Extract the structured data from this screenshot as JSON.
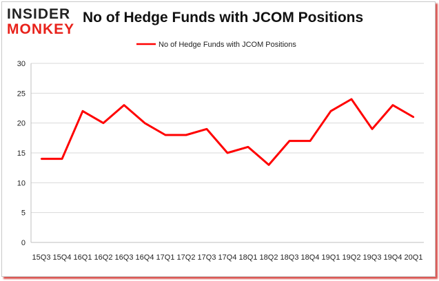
{
  "brand": {
    "line1": "INSIDER",
    "line2": "MONKEY"
  },
  "chart_data": {
    "type": "line",
    "title": "No of Hedge Funds with JCOM Positions",
    "categories": [
      "15Q3",
      "15Q4",
      "16Q1",
      "16Q2",
      "16Q3",
      "16Q4",
      "17Q1",
      "17Q2",
      "17Q3",
      "17Q4",
      "18Q1",
      "18Q2",
      "18Q3",
      "18Q4",
      "19Q1",
      "19Q2",
      "19Q3",
      "19Q4",
      "20Q1"
    ],
    "series": [
      {
        "name": "No of Hedge Funds with JCOM Positions",
        "values": [
          14,
          14,
          22,
          20,
          23,
          20,
          18,
          18,
          19,
          15,
          16,
          13,
          17,
          17,
          22,
          24,
          19,
          23,
          21
        ],
        "color": "#ff0000"
      }
    ],
    "yticks": [
      0,
      5,
      10,
      15,
      20,
      25,
      30
    ],
    "ylim": [
      0,
      30
    ],
    "grid": true,
    "legend": "top-center"
  }
}
